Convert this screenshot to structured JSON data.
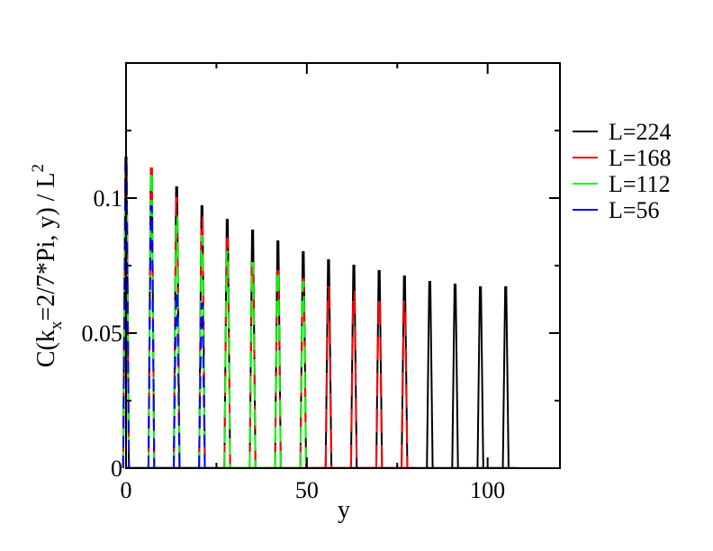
{
  "chart_data": {
    "type": "line",
    "xlabel": "y",
    "ylabel": {
      "prefix": "C(k",
      "subscript": "x",
      "middle": "=2/7*Pi, y) / L",
      "superscript": "2"
    },
    "xlim": [
      0,
      120
    ],
    "ylim": [
      0,
      0.15
    ],
    "x_ticks": [
      {
        "value": 0,
        "label": "0"
      },
      {
        "value": 50,
        "label": "50"
      },
      {
        "value": 100,
        "label": "100"
      }
    ],
    "y_ticks": [
      {
        "value": 0,
        "label": "0"
      },
      {
        "value": 0.05,
        "label": "0.05"
      },
      {
        "value": 0.1,
        "label": "0.1"
      }
    ],
    "x_minor_ticks": [
      25,
      75
    ],
    "y_minor_ticks": [
      0.025,
      0.075,
      0.125
    ],
    "grid": false,
    "legend_position": "right",
    "series": [
      {
        "name": "L=224",
        "color": "#000000",
        "peaks": [
          {
            "x": 0,
            "y": 0.115
          },
          {
            "x": 7,
            "y": 0.111
          },
          {
            "x": 14,
            "y": 0.104
          },
          {
            "x": 21,
            "y": 0.097
          },
          {
            "x": 28,
            "y": 0.092
          },
          {
            "x": 35,
            "y": 0.088
          },
          {
            "x": 42,
            "y": 0.084
          },
          {
            "x": 49,
            "y": 0.08
          },
          {
            "x": 56,
            "y": 0.077
          },
          {
            "x": 63,
            "y": 0.075
          },
          {
            "x": 70,
            "y": 0.073
          },
          {
            "x": 77,
            "y": 0.071
          },
          {
            "x": 84,
            "y": 0.069
          },
          {
            "x": 91,
            "y": 0.068
          },
          {
            "x": 98,
            "y": 0.067
          },
          {
            "x": 105,
            "y": 0.067
          }
        ]
      },
      {
        "name": "L=168",
        "color": "#ff0000",
        "peaks": [
          {
            "x": 0,
            "y": 0.114
          },
          {
            "x": 7,
            "y": 0.111
          },
          {
            "x": 14,
            "y": 0.1
          },
          {
            "x": 21,
            "y": 0.093
          },
          {
            "x": 28,
            "y": 0.085
          },
          {
            "x": 35,
            "y": 0.078
          },
          {
            "x": 42,
            "y": 0.073
          },
          {
            "x": 49,
            "y": 0.07
          },
          {
            "x": 56,
            "y": 0.067
          },
          {
            "x": 63,
            "y": 0.066
          },
          {
            "x": 70,
            "y": 0.064
          },
          {
            "x": 77,
            "y": 0.062
          }
        ]
      },
      {
        "name": "L=112",
        "color": "#00ff00",
        "peaks": [
          {
            "x": 0,
            "y": 0.113
          },
          {
            "x": 7,
            "y": 0.11
          },
          {
            "x": 14,
            "y": 0.093
          },
          {
            "x": 21,
            "y": 0.086
          },
          {
            "x": 28,
            "y": 0.08
          },
          {
            "x": 35,
            "y": 0.076
          },
          {
            "x": 42,
            "y": 0.073
          },
          {
            "x": 49,
            "y": 0.069
          }
        ]
      },
      {
        "name": "L=56",
        "color": "#0000ff",
        "peaks": [
          {
            "x": 0,
            "y": 0.115
          },
          {
            "x": 7,
            "y": 0.097
          },
          {
            "x": 14,
            "y": 0.065
          },
          {
            "x": 21,
            "y": 0.061
          }
        ]
      }
    ]
  }
}
